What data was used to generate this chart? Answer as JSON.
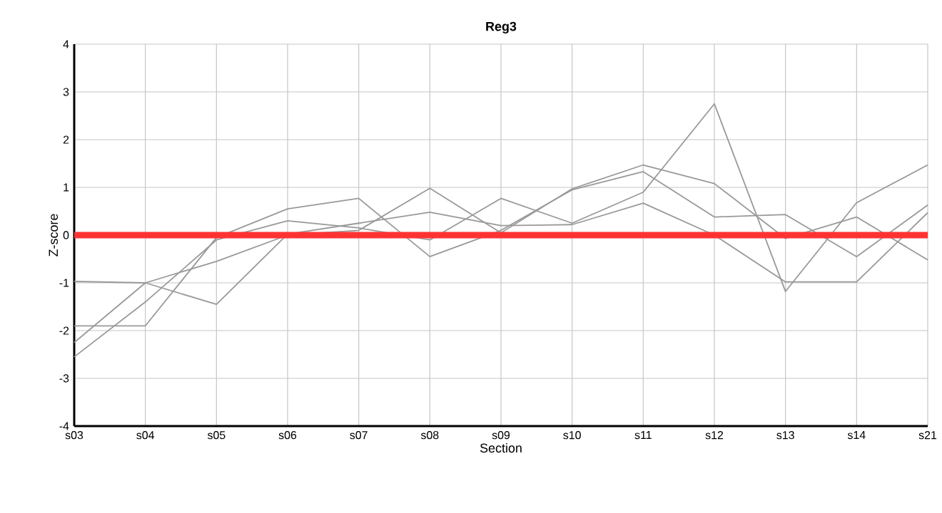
{
  "chart_data": {
    "type": "line",
    "title": "Reg3",
    "xlabel": "Section",
    "ylabel": "Z-score",
    "categories": [
      "s03",
      "s04",
      "s05",
      "s06",
      "s07",
      "s08",
      "s09",
      "s10",
      "s11",
      "s12",
      "s13",
      "s14",
      "s21"
    ],
    "series": [
      {
        "color": "#999999",
        "values": [
          -2.55,
          -1.4,
          -0.1,
          0.3,
          0.15,
          -0.1,
          0.77,
          0.25,
          0.9,
          2.75,
          -1.18,
          0.68,
          1.47
        ]
      },
      {
        "color": "#999999",
        "values": [
          -2.25,
          -1.0,
          -0.55,
          0.0,
          0.1,
          0.98,
          0.05,
          0.97,
          1.47,
          1.08,
          -0.07,
          0.38,
          -0.52
        ]
      },
      {
        "color": "#999999",
        "values": [
          -1.9,
          -1.9,
          -0.05,
          0.55,
          0.77,
          -0.45,
          0.1,
          0.95,
          1.33,
          0.38,
          0.43,
          -0.45,
          0.63
        ]
      },
      {
        "color": "#999999",
        "values": [
          -0.97,
          -1.0,
          -1.45,
          0.02,
          0.25,
          0.48,
          0.2,
          0.22,
          0.67,
          0.0,
          -0.98,
          -0.98,
          0.47
        ]
      }
    ],
    "ylim": [
      -4,
      4
    ],
    "yticks": [
      -4,
      -3,
      -2,
      -1,
      0,
      1,
      2,
      3,
      4
    ],
    "ref_lines": [
      {
        "axis": "y",
        "value": 0,
        "color": "#ff3333"
      }
    ],
    "grid": true,
    "marker": "none",
    "line_style": "solid"
  }
}
